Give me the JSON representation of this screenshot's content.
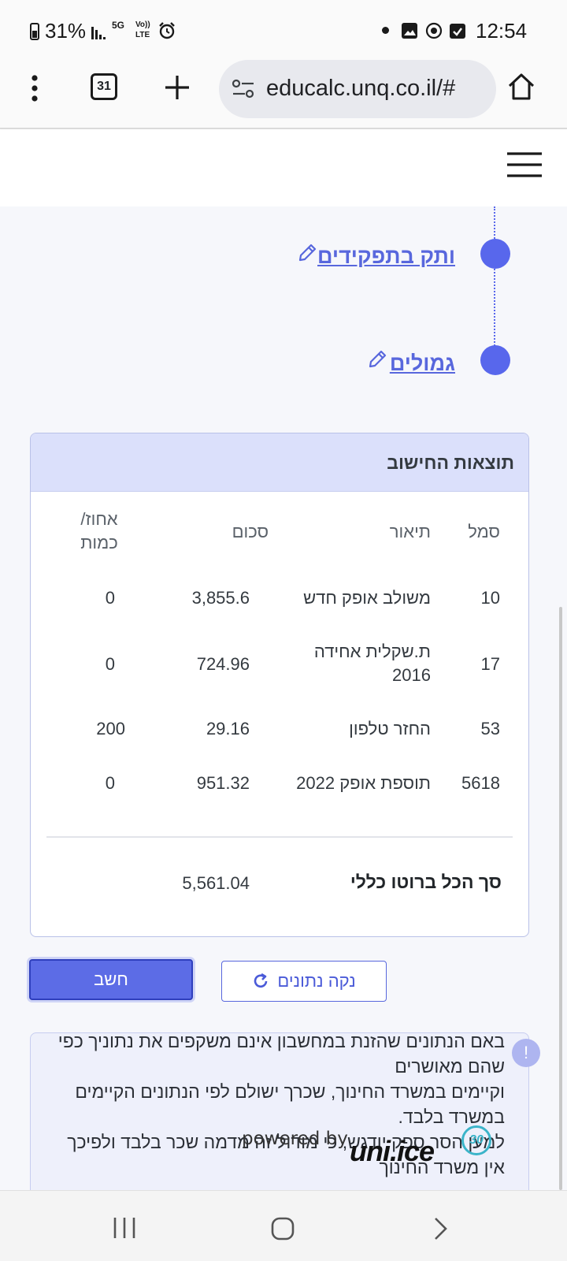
{
  "status_bar": {
    "battery": "31%",
    "network_5g": "5G",
    "volte": "Vo))",
    "lte": "LTE",
    "time": "12:54"
  },
  "browser": {
    "tab_count": "31",
    "url": "educalc.unq.co.il/#"
  },
  "steps": [
    {
      "label": "ותק בתפקידים"
    },
    {
      "label": "גמולים"
    }
  ],
  "results": {
    "title": "תוצאות החישוב",
    "columns": {
      "code": "סמל",
      "description": "תיאור",
      "amount": "סכום",
      "percent": "אחוז/ כמות"
    },
    "rows": [
      {
        "code": "10",
        "description": "משולב אופק חדש",
        "amount": "3,855.6",
        "percent": "0"
      },
      {
        "code": "17",
        "description": "ת.שקלית אחידה 2016",
        "amount": "724.96",
        "percent": "0"
      },
      {
        "code": "53",
        "description": "החזר טלפון",
        "amount": "29.16",
        "percent": "200"
      },
      {
        "code": "5618",
        "description": "תוספת אופק 2022",
        "amount": "951.32",
        "percent": "0"
      }
    ],
    "total_label": "סך הכל ברוטו כללי",
    "total_amount": "5,561.04"
  },
  "actions": {
    "calculate": "חשב",
    "clear": "נקה נתונים"
  },
  "notice": {
    "line1": "באם הנתונים שהזנת במחשבון אינם משקפים את נתוניך כפי",
    "line2": "שהם מאושרים",
    "line3": "וקיימים במשרד החינוך, שכרך ישולם לפי הנתונים הקיימים",
    "line4": "במשרד בלבד.",
    "line5": "למען הסר ספק יודגש, כי מודול זה מדמה שכר בלבד ולפיכך",
    "line6": "אין משרד החינוך",
    "badge": "!"
  },
  "watermark": {
    "powered_by": "powered by",
    "brand": "uni.ice",
    "badge": "30"
  },
  "colors": {
    "accent": "#5867dd",
    "header_bg": "#dbe0fb",
    "dot": "#5867ec"
  }
}
